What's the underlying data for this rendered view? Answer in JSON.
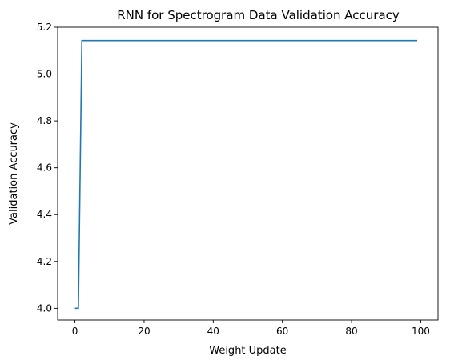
{
  "chart_data": {
    "type": "line",
    "title": "RNN for Spectrogram Data Validation Accuracy",
    "xlabel": "Weight Update",
    "ylabel": "Validation Accuracy",
    "xlim": [
      -5,
      105
    ],
    "ylim": [
      3.95,
      5.2
    ],
    "xticks": [
      0,
      20,
      40,
      60,
      80,
      100
    ],
    "xtick_labels": [
      "0",
      "20",
      "40",
      "60",
      "80",
      "100"
    ],
    "yticks": [
      4.0,
      4.2,
      4.4,
      4.6,
      4.8,
      5.0,
      5.2
    ],
    "ytick_labels": [
      "4.0",
      "4.2",
      "4.4",
      "4.6",
      "4.8",
      "5.0",
      "5.2"
    ],
    "grid": false,
    "legend": false,
    "series": [
      {
        "color": "#1f77b4",
        "x": [
          0,
          1,
          2,
          99
        ],
        "y": [
          4.0,
          4.0,
          5.143,
          5.143
        ]
      }
    ]
  }
}
